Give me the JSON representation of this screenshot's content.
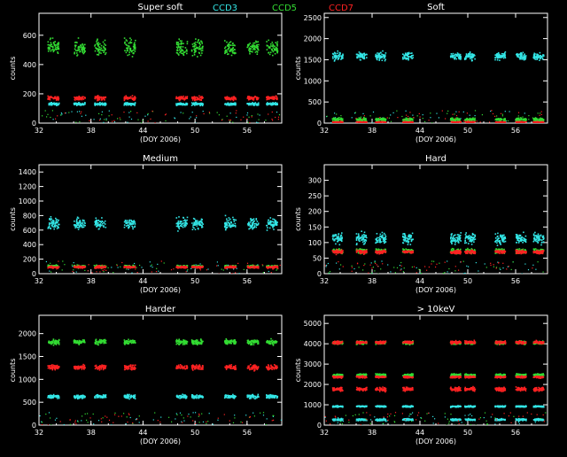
{
  "legend": {
    "ccd3": {
      "label": "CCD3",
      "color": "#33e6e6"
    },
    "ccd5": {
      "label": "CCD5",
      "color": "#33dd33"
    },
    "ccd7": {
      "label": "CCD7",
      "color": "#ff2222"
    }
  },
  "chart_data": [
    {
      "type": "scatter",
      "title": "Super soft",
      "xlabel": "(DOY 2006)",
      "ylabel": "counts",
      "xlim": [
        32,
        60
      ],
      "ylim": [
        0,
        750
      ],
      "xticks": [
        32,
        38,
        44,
        50,
        56
      ],
      "yticks": [
        0,
        200,
        400,
        600
      ],
      "series": [
        {
          "name": "CCD3",
          "color": "#33e6e6",
          "bands": [
            {
              "y": 135,
              "spread": 15
            }
          ]
        },
        {
          "name": "CCD5",
          "color": "#33dd33",
          "bands": [
            {
              "y": 520,
              "spread": 90
            }
          ]
        },
        {
          "name": "CCD7",
          "color": "#ff2222",
          "bands": [
            {
              "y": 175,
              "spread": 22
            }
          ]
        }
      ]
    },
    {
      "type": "scatter",
      "title": "Soft",
      "xlabel": "(DOY 2006)",
      "ylabel": "counts",
      "xlim": [
        32,
        60
      ],
      "ylim": [
        0,
        2600
      ],
      "xticks": [
        32,
        38,
        44,
        50,
        56
      ],
      "yticks": [
        0,
        500,
        1000,
        1500,
        2000,
        2500
      ],
      "series": [
        {
          "name": "CCD3",
          "color": "#33e6e6",
          "bands": [
            {
              "y": 1600,
              "spread": 150
            }
          ]
        },
        {
          "name": "CCD5",
          "color": "#33dd33",
          "bands": [
            {
              "y": 100,
              "spread": 60
            }
          ]
        },
        {
          "name": "CCD7",
          "color": "#ff2222",
          "bands": [
            {
              "y": 40,
              "spread": 20
            }
          ]
        }
      ]
    },
    {
      "type": "scatter",
      "title": "Medium",
      "xlabel": "(DOY 2006)",
      "ylabel": "counts",
      "xlim": [
        32,
        60
      ],
      "ylim": [
        0,
        1500
      ],
      "xticks": [
        32,
        38,
        44,
        50,
        56
      ],
      "yticks": [
        0,
        200,
        400,
        600,
        800,
        1000,
        1200,
        1400
      ],
      "series": [
        {
          "name": "CCD3",
          "color": "#33e6e6",
          "bands": [
            {
              "y": 700,
              "spread": 130
            }
          ]
        },
        {
          "name": "CCD5",
          "color": "#33dd33",
          "bands": [
            {
              "y": 110,
              "spread": 25
            }
          ]
        },
        {
          "name": "CCD7",
          "color": "#ff2222",
          "bands": [
            {
              "y": 100,
              "spread": 25
            }
          ]
        }
      ]
    },
    {
      "type": "scatter",
      "title": "Hard",
      "xlabel": "(DOY 2006)",
      "ylabel": "counts",
      "xlim": [
        32,
        60
      ],
      "ylim": [
        0,
        350
      ],
      "xticks": [
        32,
        38,
        44,
        50,
        56
      ],
      "yticks": [
        0,
        50,
        100,
        150,
        200,
        250,
        300
      ],
      "series": [
        {
          "name": "CCD3",
          "color": "#33e6e6",
          "bands": [
            {
              "y": 115,
              "spread": 30
            }
          ]
        },
        {
          "name": "CCD5",
          "color": "#33dd33",
          "bands": [
            {
              "y": 75,
              "spread": 12
            }
          ]
        },
        {
          "name": "CCD7",
          "color": "#ff2222",
          "bands": [
            {
              "y": 72,
              "spread": 10
            }
          ]
        }
      ]
    },
    {
      "type": "scatter",
      "title": "Harder",
      "xlabel": "(DOY 2006)",
      "ylabel": "counts",
      "xlim": [
        32,
        60
      ],
      "ylim": [
        0,
        2400
      ],
      "xticks": [
        32,
        38,
        44,
        50,
        56
      ],
      "yticks": [
        0,
        500,
        1000,
        1500,
        2000
      ],
      "series": [
        {
          "name": "CCD3",
          "color": "#33e6e6",
          "bands": [
            {
              "y": 640,
              "spread": 70
            }
          ]
        },
        {
          "name": "CCD5",
          "color": "#33dd33",
          "bands": [
            {
              "y": 1830,
              "spread": 90
            }
          ]
        },
        {
          "name": "CCD7",
          "color": "#ff2222",
          "bands": [
            {
              "y": 1280,
              "spread": 90
            }
          ]
        }
      ]
    },
    {
      "type": "scatter",
      "title": "> 10keV",
      "xlabel": "(DOY 2006)",
      "ylabel": "counts",
      "xlim": [
        32,
        60
      ],
      "ylim": [
        0,
        5400
      ],
      "xticks": [
        32,
        38,
        44,
        50,
        56
      ],
      "yticks": [
        0,
        1000,
        2000,
        3000,
        4000,
        5000
      ],
      "series": [
        {
          "name": "CCD3",
          "color": "#33e6e6",
          "bands": [
            {
              "y": 950,
              "spread": 60
            },
            {
              "y": 300,
              "spread": 80
            }
          ]
        },
        {
          "name": "CCD5",
          "color": "#33dd33",
          "bands": [
            {
              "y": 4080,
              "spread": 120
            },
            {
              "y": 2500,
              "spread": 100
            }
          ]
        },
        {
          "name": "CCD7",
          "color": "#ff2222",
          "bands": [
            {
              "y": 4100,
              "spread": 120
            },
            {
              "y": 2400,
              "spread": 80
            },
            {
              "y": 1800,
              "spread": 150
            }
          ]
        }
      ]
    }
  ],
  "observation_clusters": [
    33.6,
    36.6,
    39.0,
    42.4,
    48.4,
    50.2,
    54.0,
    56.6,
    58.8
  ]
}
